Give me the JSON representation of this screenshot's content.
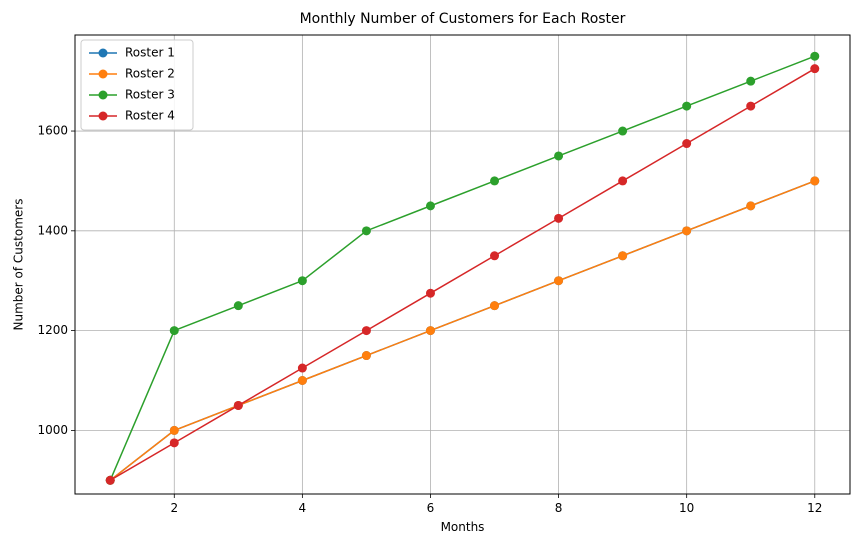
{
  "chart_data": {
    "type": "line",
    "title": "Monthly Number of Customers for Each Roster",
    "xlabel": "Months",
    "ylabel": "Number of Customers",
    "x": [
      1,
      2,
      3,
      4,
      5,
      6,
      7,
      8,
      9,
      10,
      11,
      12
    ],
    "xlim": [
      0.45,
      12.55
    ],
    "ylim": [
      872.5,
      1792.5
    ],
    "xticks": [
      2,
      4,
      6,
      8,
      10,
      12
    ],
    "yticks": [
      1000,
      1200,
      1400,
      1600
    ],
    "grid": true,
    "legend_position": "top-left",
    "series": [
      {
        "name": "Roster 1",
        "color": "#1f77b4",
        "values": [
          900,
          1000,
          1050,
          1100,
          1150,
          1200,
          1250,
          1300,
          1350,
          1400,
          1450,
          1500
        ]
      },
      {
        "name": "Roster 2",
        "color": "#ff7f0e",
        "values": [
          900,
          1000,
          1050,
          1100,
          1150,
          1200,
          1250,
          1300,
          1350,
          1400,
          1450,
          1500
        ]
      },
      {
        "name": "Roster 3",
        "color": "#2ca02c",
        "values": [
          900,
          1200,
          1250,
          1300,
          1400,
          1450,
          1500,
          1550,
          1600,
          1650,
          1700,
          1750
        ]
      },
      {
        "name": "Roster 4",
        "color": "#d62728",
        "values": [
          900,
          975,
          1050,
          1125,
          1200,
          1275,
          1350,
          1425,
          1500,
          1575,
          1650,
          1725
        ]
      }
    ]
  }
}
